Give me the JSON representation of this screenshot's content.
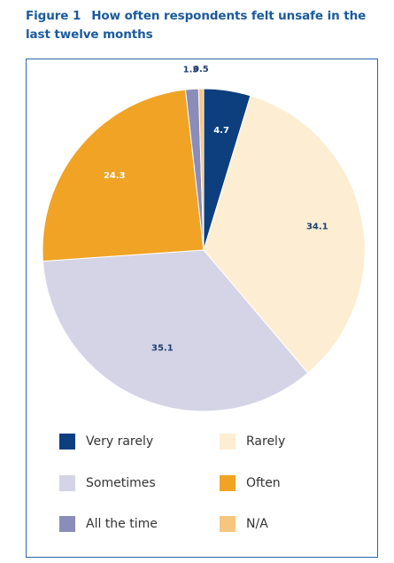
{
  "title": {
    "figure": "Figure 1",
    "text": "How often respondents felt unsafe in the last twelve months"
  },
  "chart_data": {
    "type": "pie",
    "categories": [
      "Very rarely",
      "Rarely",
      "Sometimes",
      "Often",
      "All the time",
      "N/A"
    ],
    "values": [
      4.7,
      34.1,
      35.1,
      24.3,
      1.3,
      0.5
    ],
    "data_labels": [
      "4.7",
      "34.1",
      "35.1",
      "24.3",
      "1.3",
      "0.5"
    ],
    "colors": [
      "#0d3f7f",
      "#fdedd2",
      "#d4d4e6",
      "#f0a324",
      "#8a8cba",
      "#f6c57f"
    ],
    "label_colors": [
      "#ffffff",
      "#1f3f73",
      "#1f3f73",
      "#ffffff",
      "#1f3f73",
      "#1f3f73"
    ],
    "start": "12 o'clock",
    "direction": "clockwise",
    "legend_position": "bottom"
  }
}
